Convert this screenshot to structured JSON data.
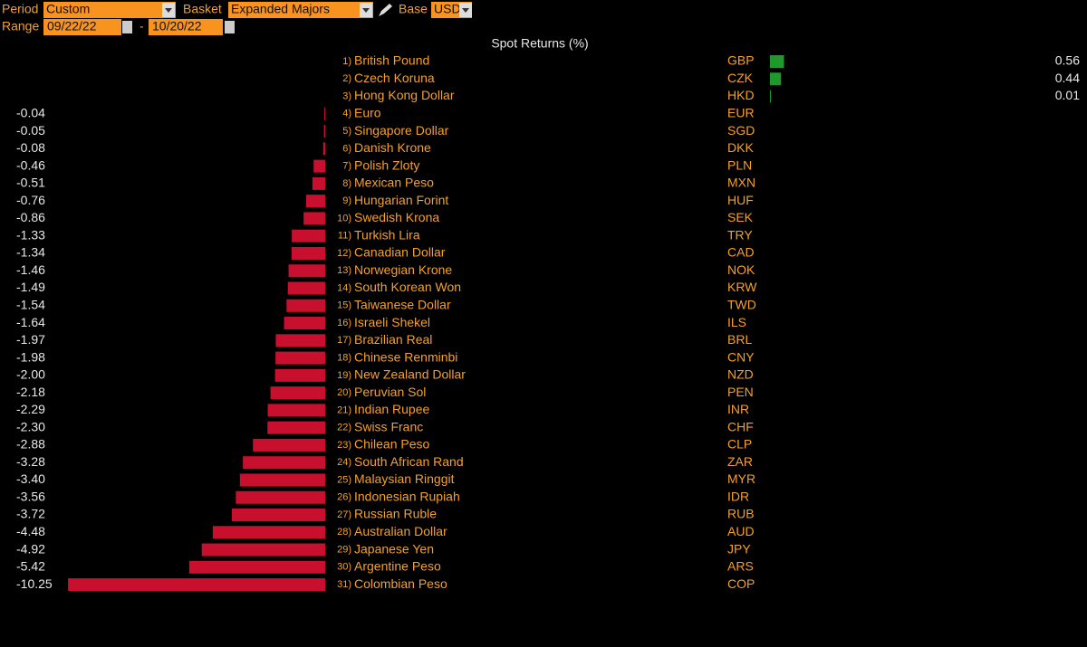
{
  "controls": {
    "period_label": "Period",
    "period_value": "Custom",
    "basket_label": "Basket",
    "basket_value": "Expanded Majors",
    "base_label": "Base",
    "base_value": "USD",
    "range_label": "Range",
    "range_start": "09/22/22",
    "range_sep": "-",
    "range_end": "10/20/22"
  },
  "chart_data": {
    "type": "bar",
    "title": "Spot Returns (%)",
    "ranks": [
      "1)",
      "2)",
      "3)",
      "4)",
      "5)",
      "6)",
      "7)",
      "8)",
      "9)",
      "10)",
      "11)",
      "12)",
      "13)",
      "14)",
      "15)",
      "16)",
      "17)",
      "18)",
      "19)",
      "20)",
      "21)",
      "22)",
      "23)",
      "24)",
      "25)",
      "26)",
      "27)",
      "28)",
      "29)",
      "30)",
      "31)"
    ],
    "categories": [
      "British Pound",
      "Czech Koruna",
      "Hong Kong Dollar",
      "Euro",
      "Singapore Dollar",
      "Danish Krone",
      "Polish Zloty",
      "Mexican Peso",
      "Hungarian Forint",
      "Swedish Krona",
      "Turkish Lira",
      "Canadian Dollar",
      "Norwegian Krone",
      "South Korean Won",
      "Taiwanese Dollar",
      "Israeli Shekel",
      "Brazilian Real",
      "Chinese Renminbi",
      "New Zealand Dollar",
      "Peruvian Sol",
      "Indian Rupee",
      "Swiss Franc",
      "Chilean Peso",
      "South African Rand",
      "Malaysian Ringgit",
      "Indonesian Rupiah",
      "Russian Ruble",
      "Australian Dollar",
      "Japanese Yen",
      "Argentine Peso",
      "Colombian Peso"
    ],
    "codes": [
      "GBP",
      "CZK",
      "HKD",
      "EUR",
      "SGD",
      "DKK",
      "PLN",
      "MXN",
      "HUF",
      "SEK",
      "TRY",
      "CAD",
      "NOK",
      "KRW",
      "TWD",
      "ILS",
      "BRL",
      "CNY",
      "NZD",
      "PEN",
      "INR",
      "CHF",
      "CLP",
      "ZAR",
      "MYR",
      "IDR",
      "RUB",
      "AUD",
      "JPY",
      "ARS",
      "COP"
    ],
    "values": [
      0.56,
      0.44,
      0.01,
      -0.04,
      -0.05,
      -0.08,
      -0.46,
      -0.51,
      -0.76,
      -0.86,
      -1.33,
      -1.34,
      -1.46,
      -1.49,
      -1.54,
      -1.64,
      -1.97,
      -1.98,
      -2.0,
      -2.18,
      -2.29,
      -2.3,
      -2.88,
      -3.28,
      -3.4,
      -3.56,
      -3.72,
      -4.48,
      -4.92,
      -5.42,
      -10.25
    ],
    "value_labels": [
      "0.56",
      "0.44",
      "0.01",
      "-0.04",
      "-0.05",
      "-0.08",
      "-0.46",
      "-0.51",
      "-0.76",
      "-0.86",
      "-1.33",
      "-1.34",
      "-1.46",
      "-1.49",
      "-1.54",
      "-1.64",
      "-1.97",
      "-1.98",
      "-2.00",
      "-2.18",
      "-2.29",
      "-2.30",
      "-2.88",
      "-3.28",
      "-3.40",
      "-3.56",
      "-3.72",
      "-4.48",
      "-4.92",
      "-5.42",
      "-10.25"
    ],
    "positive_color": "#1e9a2c",
    "negative_color": "#c8102e"
  }
}
